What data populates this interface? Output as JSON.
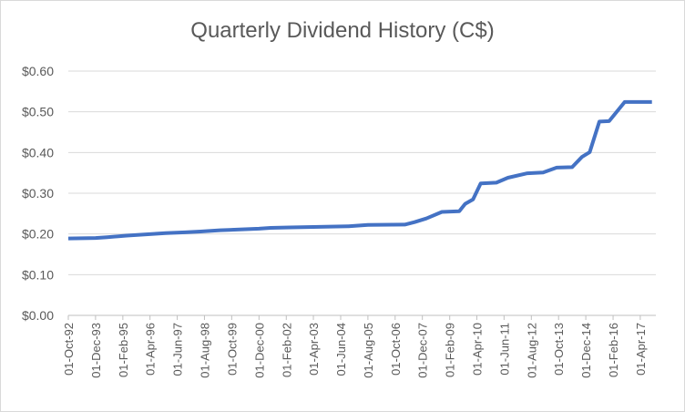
{
  "chart_data": {
    "type": "line",
    "title": "Quarterly Dividend History (C$)",
    "xlabel": "",
    "ylabel": "",
    "ylim": [
      0,
      0.6
    ],
    "y_ticks": [
      0.0,
      0.1,
      0.2,
      0.3,
      0.4,
      0.5,
      0.6
    ],
    "y_tick_labels": [
      "$0.00",
      "$0.10",
      "$0.20",
      "$0.30",
      "$0.40",
      "$0.50",
      "$0.60"
    ],
    "x_tick_labels": [
      "01-Oct-92",
      "01-Dec-93",
      "01-Feb-95",
      "01-Apr-96",
      "01-Jun-97",
      "01-Aug-98",
      "01-Oct-99",
      "01-Dec-00",
      "01-Feb-02",
      "01-Apr-03",
      "01-Jun-04",
      "01-Aug-05",
      "01-Oct-06",
      "01-Dec-07",
      "01-Feb-09",
      "01-Apr-10",
      "01-Jun-11",
      "01-Aug-12",
      "01-Oct-13",
      "01-Dec-14",
      "01-Feb-16",
      "01-Apr-17"
    ],
    "grid": "horizontal",
    "legend": "none",
    "line_color": "#4472c4",
    "series": [
      {
        "x": [
          "01-Oct-92",
          "01-Dec-93",
          "01-Jun-94",
          "01-Apr-95",
          "01-Feb-96",
          "01-Dec-96",
          "01-Oct-97",
          "01-Jun-98",
          "01-Apr-99",
          "01-Feb-00",
          "01-Dec-00",
          "01-Jun-01",
          "01-Apr-02",
          "01-Oct-04",
          "01-Aug-05",
          "01-Mar-07",
          "01-Aug-07",
          "01-Feb-08",
          "01-Oct-08",
          "01-Jul-09",
          "01-Oct-09",
          "01-Feb-10",
          "01-Jun-10",
          "01-Feb-11",
          "01-Aug-11",
          "01-Jun-12",
          "01-Feb-13",
          "01-Sep-13",
          "01-May-14",
          "01-Oct-14",
          "01-Feb-15",
          "01-Jul-15",
          "01-Dec-15",
          "01-Aug-16",
          "01-Oct-17"
        ],
        "values": [
          0.189,
          0.19,
          0.192,
          0.196,
          0.199,
          0.202,
          0.204,
          0.206,
          0.209,
          0.211,
          0.213,
          0.215,
          0.216,
          0.219,
          0.222,
          0.223,
          0.229,
          0.238,
          0.254,
          0.256,
          0.274,
          0.285,
          0.324,
          0.326,
          0.338,
          0.349,
          0.351,
          0.363,
          0.364,
          0.389,
          0.401,
          0.476,
          0.477,
          0.524,
          0.524
        ]
      }
    ]
  }
}
